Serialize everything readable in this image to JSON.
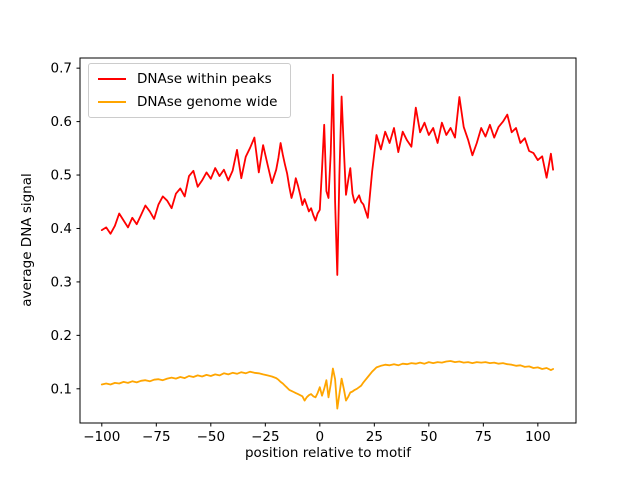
{
  "chart_data": {
    "type": "line",
    "title": "",
    "xlabel": "position relative to motif",
    "ylabel": "average DNA signal",
    "xlim": [
      -110,
      117.5
    ],
    "ylim": [
      0.036,
      0.719
    ],
    "x_ticks": [
      -100,
      -75,
      -50,
      -25,
      0,
      25,
      50,
      75,
      100
    ],
    "y_ticks": [
      0.1,
      0.2,
      0.3,
      0.4,
      0.5,
      0.6,
      0.7
    ],
    "grid": false,
    "legend_position": "upper left",
    "x": [
      -100,
      -98,
      -96,
      -94,
      -92,
      -90,
      -88,
      -86,
      -84,
      -82,
      -80,
      -78,
      -76,
      -74,
      -72,
      -70,
      -68,
      -66,
      -64,
      -62,
      -60,
      -58,
      -56,
      -54,
      -52,
      -50,
      -48,
      -46,
      -44,
      -42,
      -40,
      -38,
      -36,
      -34,
      -32,
      -30,
      -28,
      -26,
      -24,
      -22,
      -20,
      -19,
      -18,
      -17,
      -16,
      -15,
      -14,
      -13,
      -12,
      -11,
      -10,
      -9,
      -8,
      -7,
      -6,
      -5,
      -4,
      -3,
      -2,
      -1,
      0,
      1,
      2,
      3,
      4,
      5,
      6,
      7,
      8,
      9,
      10,
      11,
      12,
      13,
      14,
      15,
      16,
      17,
      18,
      19,
      20,
      22,
      24,
      26,
      28,
      30,
      32,
      34,
      36,
      38,
      40,
      42,
      44,
      46,
      48,
      50,
      52,
      54,
      56,
      58,
      60,
      62,
      64,
      66,
      68,
      70,
      72,
      74,
      76,
      78,
      80,
      82,
      84,
      86,
      88,
      90,
      92,
      94,
      96,
      98,
      100,
      102,
      104,
      106,
      107
    ],
    "series": [
      {
        "name": "DNAse within peaks",
        "color": "#ff0000",
        "values": [
          0.397,
          0.402,
          0.39,
          0.405,
          0.428,
          0.415,
          0.402,
          0.42,
          0.408,
          0.425,
          0.443,
          0.432,
          0.418,
          0.445,
          0.46,
          0.452,
          0.438,
          0.465,
          0.475,
          0.46,
          0.498,
          0.508,
          0.478,
          0.49,
          0.505,
          0.493,
          0.513,
          0.498,
          0.51,
          0.49,
          0.508,
          0.547,
          0.494,
          0.534,
          0.551,
          0.57,
          0.505,
          0.556,
          0.52,
          0.485,
          0.51,
          0.532,
          0.56,
          0.538,
          0.52,
          0.503,
          0.478,
          0.457,
          0.472,
          0.494,
          0.48,
          0.463,
          0.444,
          0.455,
          0.444,
          0.432,
          0.438,
          0.425,
          0.415,
          0.428,
          0.435,
          0.51,
          0.594,
          0.47,
          0.457,
          0.54,
          0.688,
          0.45,
          0.313,
          0.5,
          0.647,
          0.55,
          0.463,
          0.49,
          0.513,
          0.465,
          0.448,
          0.455,
          0.462,
          0.45,
          0.445,
          0.42,
          0.506,
          0.575,
          0.548,
          0.581,
          0.56,
          0.588,
          0.543,
          0.581,
          0.565,
          0.553,
          0.626,
          0.58,
          0.598,
          0.575,
          0.588,
          0.56,
          0.598,
          0.575,
          0.588,
          0.57,
          0.646,
          0.59,
          0.566,
          0.537,
          0.56,
          0.588,
          0.572,
          0.594,
          0.57,
          0.59,
          0.6,
          0.613,
          0.58,
          0.588,
          0.56,
          0.569,
          0.545,
          0.541,
          0.528,
          0.535,
          0.495,
          0.54,
          0.51
        ]
      },
      {
        "name": "DNAse genome wide",
        "color": "#ffa500",
        "values": [
          0.108,
          0.11,
          0.108,
          0.111,
          0.11,
          0.113,
          0.111,
          0.114,
          0.112,
          0.115,
          0.116,
          0.114,
          0.117,
          0.118,
          0.116,
          0.119,
          0.121,
          0.119,
          0.122,
          0.12,
          0.124,
          0.122,
          0.125,
          0.123,
          0.126,
          0.124,
          0.127,
          0.125,
          0.129,
          0.127,
          0.13,
          0.128,
          0.131,
          0.129,
          0.132,
          0.13,
          0.129,
          0.127,
          0.125,
          0.123,
          0.12,
          0.117,
          0.113,
          0.11,
          0.106,
          0.102,
          0.098,
          0.096,
          0.094,
          0.092,
          0.09,
          0.088,
          0.086,
          0.078,
          0.084,
          0.088,
          0.09,
          0.086,
          0.084,
          0.092,
          0.103,
          0.087,
          0.1,
          0.116,
          0.084,
          0.108,
          0.138,
          0.118,
          0.063,
          0.09,
          0.119,
          0.1,
          0.078,
          0.085,
          0.093,
          0.095,
          0.098,
          0.1,
          0.103,
          0.106,
          0.112,
          0.122,
          0.132,
          0.14,
          0.143,
          0.145,
          0.144,
          0.146,
          0.144,
          0.147,
          0.146,
          0.148,
          0.147,
          0.149,
          0.147,
          0.15,
          0.148,
          0.15,
          0.149,
          0.151,
          0.152,
          0.15,
          0.151,
          0.149,
          0.15,
          0.148,
          0.15,
          0.149,
          0.15,
          0.148,
          0.149,
          0.147,
          0.148,
          0.146,
          0.145,
          0.143,
          0.144,
          0.141,
          0.142,
          0.139,
          0.14,
          0.137,
          0.139,
          0.135,
          0.137
        ]
      }
    ]
  }
}
